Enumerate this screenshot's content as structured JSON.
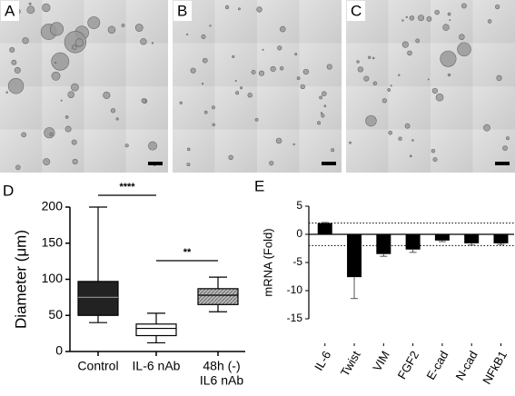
{
  "panels": {
    "a": "A",
    "b": "B",
    "c": "C"
  },
  "chart_data": [
    {
      "type": "box",
      "label": "D",
      "ylabel": "Diameter (μm)",
      "categories": [
        "Control",
        "IL-6 nAb",
        [
          "48h (-)",
          "IL6 nAb"
        ]
      ],
      "boxes": [
        {
          "min": 40,
          "q1": 50,
          "median": 75,
          "q3": 97,
          "max": 200,
          "color": "#222222"
        },
        {
          "min": 12,
          "q1": 22,
          "median": 32,
          "q3": 38,
          "max": 53,
          "color": "#ffffff"
        },
        {
          "min": 55,
          "q1": 65,
          "median": 78,
          "q3": 87,
          "max": 103,
          "color": "hatch"
        }
      ],
      "ylim": [
        0,
        200
      ],
      "yticks": [
        0,
        50,
        100,
        150,
        200
      ],
      "annotations": [
        "****",
        "**"
      ]
    },
    {
      "type": "bar",
      "label": "E",
      "ylabel": "mRNA (Fold)",
      "categories": [
        "IL-6",
        "Twist",
        "VIM",
        "FGF2",
        "E-cad",
        "N-cad",
        "NFkB1"
      ],
      "values": [
        2,
        -7.6,
        -3.5,
        -2.7,
        -1.1,
        -1.6,
        -1.6
      ],
      "errors": [
        0.1,
        3.8,
        0.4,
        0.5,
        0.2,
        0.3,
        0.2
      ],
      "color": "#000000",
      "ylim": [
        -15,
        5
      ],
      "yticks": [
        5,
        0,
        -5,
        -10,
        -15
      ],
      "reference_lines": [
        2,
        -2
      ]
    }
  ]
}
